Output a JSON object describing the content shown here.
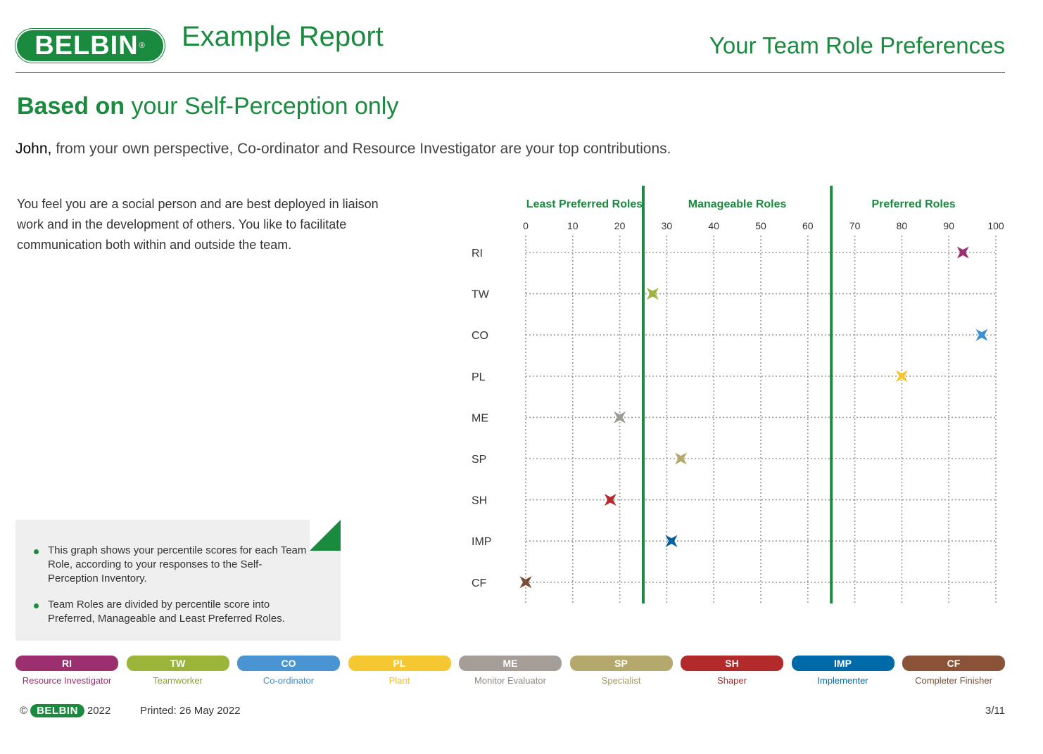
{
  "header": {
    "logo_text": "BELBIN",
    "logo_mark": "®",
    "report_title": "Example Report",
    "section_title": "Your Team Role Preferences"
  },
  "subtitle": {
    "bold": "Based on",
    "rest": " your Self-Perception only"
  },
  "lead": {
    "name": "John,",
    "text": " from your own perspective, Co-ordinator and Resource Investigator are your top contributions."
  },
  "description": "You feel you are a social person and are best deployed in liaison work and in the development of others. You like to facilitate communication both within and outside the team.",
  "note": {
    "bullets": [
      "This graph shows your percentile scores for each Team Role, according to your responses to the Self-Perception Inventory.",
      "Team Roles are divided by percentile score into Preferred, Manageable and Least Preferred Roles."
    ]
  },
  "chart_data": {
    "type": "scatter",
    "zones": [
      {
        "label": "Least Preferred Roles",
        "from": 0,
        "to": 25
      },
      {
        "label": "Manageable Roles",
        "from": 25,
        "to": 65
      },
      {
        "label": "Preferred Roles",
        "from": 65,
        "to": 100
      }
    ],
    "zone_boundaries": [
      25,
      65
    ],
    "x_ticks": [
      0,
      10,
      20,
      30,
      40,
      50,
      60,
      70,
      80,
      90,
      100
    ],
    "xlim": [
      0,
      100
    ],
    "grid": true,
    "categories": [
      "RI",
      "TW",
      "CO",
      "PL",
      "ME",
      "SP",
      "SH",
      "IMP",
      "CF"
    ],
    "values": [
      93,
      27,
      97,
      80,
      20,
      33,
      18,
      31,
      0
    ],
    "colors": [
      "#9c2f6e",
      "#9ab53a",
      "#3e8fd1",
      "#f5c833",
      "#a09a94",
      "#b5a86c",
      "#b8282c",
      "#005f9f",
      "#7a4b35"
    ],
    "boundary_color": "#1a8a3f"
  },
  "legend": [
    {
      "code": "RI",
      "name": "Resource Investigator",
      "color": "#9c2f6e",
      "text_color": "#9c2f6e"
    },
    {
      "code": "TW",
      "name": "Teamworker",
      "color": "#9ab53a",
      "text_color": "#8aa52e"
    },
    {
      "code": "CO",
      "name": "Co-ordinator",
      "color": "#4a94d4",
      "text_color": "#3e8fd1"
    },
    {
      "code": "PL",
      "name": "Plant",
      "color": "#f5c833",
      "text_color": "#f0c020"
    },
    {
      "code": "ME",
      "name": "Monitor Evaluator",
      "color": "#a59d97",
      "text_color": "#8f8882"
    },
    {
      "code": "SP",
      "name": "Specialist",
      "color": "#b5a86c",
      "text_color": "#a59a5c"
    },
    {
      "code": "SH",
      "name": "Shaper",
      "color": "#b22a2a",
      "text_color": "#b22a2a"
    },
    {
      "code": "IMP",
      "name": "Implementer",
      "color": "#006aa8",
      "text_color": "#006aa8"
    },
    {
      "code": "CF",
      "name": "Completer Finisher",
      "color": "#8a5236",
      "text_color": "#7a4b35"
    }
  ],
  "footer": {
    "copyright_symbol": "©",
    "logo_text": "BELBIN",
    "year": "2022",
    "printed": "Printed: 26 May 2022",
    "page": "3/11"
  }
}
